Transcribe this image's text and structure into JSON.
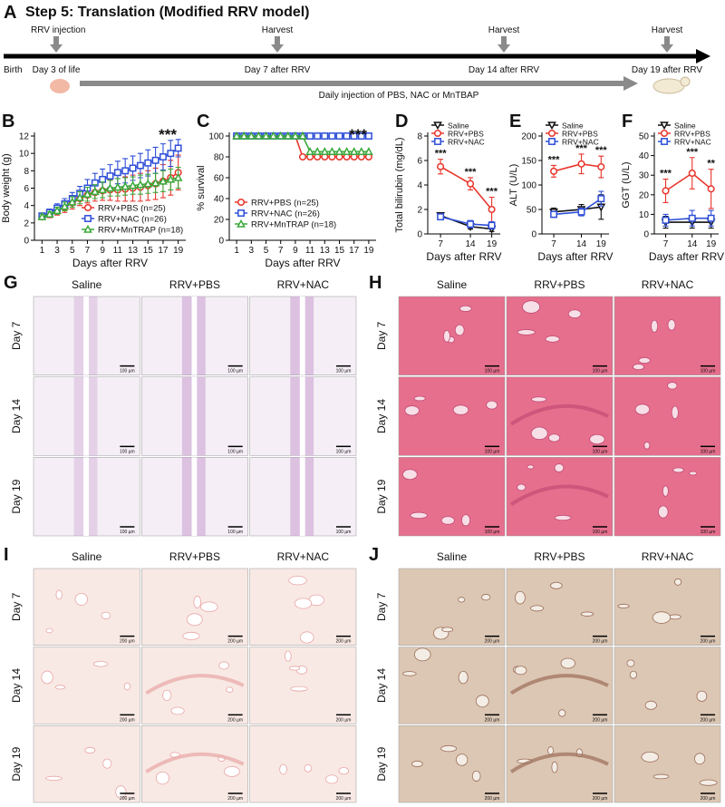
{
  "panel_a": {
    "panel": "A",
    "title": "Step 5: Translation (Modified RRV model)",
    "start": "Birth",
    "events": [
      {
        "top": "RRV injection",
        "bottom": "Day 3 of life"
      },
      {
        "top": "Harvest",
        "bottom": "Day 7 after RRV"
      },
      {
        "top": "Harvest",
        "bottom": "Day 14 after RRV"
      },
      {
        "top": "Harvest",
        "bottom": "Day 19 after RRV"
      }
    ],
    "injection": "Daily injection of PBS, NAC or MnTBAP"
  },
  "chart_data": [
    {
      "type": "line",
      "panel": "B",
      "y_label": "Body weight (g)",
      "x_label": "Days after RRV",
      "x": [
        1,
        2,
        3,
        4,
        5,
        6,
        7,
        8,
        9,
        10,
        11,
        12,
        13,
        14,
        15,
        16,
        17,
        18,
        19
      ],
      "xlim": [
        0,
        20
      ],
      "xticks": [
        1,
        3,
        5,
        7,
        9,
        11,
        13,
        15,
        17,
        19
      ],
      "ylim": [
        0,
        12
      ],
      "yticks": [
        0,
        2,
        4,
        6,
        8,
        10,
        12
      ],
      "legend": "lower right",
      "annotation": "***",
      "series": [
        {
          "name": "RRV+PBS (n=25)",
          "color": "#e8352b",
          "marker": "circle",
          "values": [
            2.7,
            3.0,
            3.4,
            3.8,
            4.3,
            4.8,
            5.2,
            5.5,
            5.7,
            5.8,
            5.8,
            5.9,
            6.0,
            6.1,
            6.3,
            6.5,
            6.8,
            7.2,
            7.8
          ],
          "errors": [
            0.3,
            0.4,
            0.5,
            0.6,
            0.7,
            0.8,
            0.9,
            1.0,
            1.1,
            1.2,
            1.3,
            1.4,
            1.5,
            1.6,
            1.7,
            1.8,
            1.9,
            2.0,
            2.0
          ]
        },
        {
          "name": "RRV+NAC (n=26)",
          "color": "#2f4fd8",
          "marker": "square",
          "values": [
            2.8,
            3.2,
            3.7,
            4.2,
            4.8,
            5.4,
            6.0,
            6.6,
            7.0,
            7.4,
            7.8,
            8.0,
            8.3,
            8.6,
            8.9,
            9.2,
            9.6,
            10.0,
            10.6
          ],
          "errors": [
            0.3,
            0.4,
            0.5,
            0.6,
            0.7,
            0.8,
            1.0,
            1.1,
            1.2,
            1.3,
            1.3,
            1.4,
            1.4,
            1.4,
            1.5,
            1.5,
            1.5,
            1.5,
            1.0
          ]
        },
        {
          "name": "RRV+MnTRAP (n=18)",
          "color": "#3aa83a",
          "marker": "triangle",
          "values": [
            2.7,
            3.0,
            3.4,
            3.9,
            4.4,
            4.9,
            5.3,
            5.6,
            5.8,
            6.0,
            6.1,
            6.2,
            6.3,
            6.4,
            6.5,
            6.6,
            6.8,
            7.0,
            7.2
          ],
          "errors": [
            0.3,
            0.3,
            0.4,
            0.5,
            0.6,
            0.7,
            0.8,
            0.8,
            0.9,
            0.9,
            1.0,
            1.0,
            1.0,
            1.1,
            1.1,
            1.1,
            1.2,
            1.2,
            1.2
          ]
        }
      ]
    },
    {
      "type": "line",
      "panel": "C",
      "y_label": "% survival",
      "x_label": "Days after RRV",
      "x": [
        1,
        2,
        3,
        4,
        5,
        6,
        7,
        8,
        9,
        10,
        11,
        12,
        13,
        14,
        15,
        16,
        17,
        18,
        19
      ],
      "xlim": [
        0,
        20
      ],
      "xticks": [
        1,
        3,
        5,
        7,
        9,
        11,
        13,
        15,
        17,
        19
      ],
      "ylim": [
        0,
        100
      ],
      "yticks": [
        0,
        20,
        40,
        60,
        80,
        100
      ],
      "legend": "lower left",
      "annotation": "***",
      "series": [
        {
          "name": "RRV+PBS (n=25)",
          "color": "#e8352b",
          "marker": "circle",
          "values": [
            100,
            100,
            100,
            100,
            100,
            100,
            100,
            100,
            100,
            80,
            80,
            80,
            80,
            80,
            80,
            80,
            80,
            80,
            80
          ]
        },
        {
          "name": "RRV+NAC (n=26)",
          "color": "#2f4fd8",
          "marker": "square",
          "values": [
            100,
            100,
            100,
            100,
            100,
            100,
            100,
            100,
            100,
            100,
            100,
            100,
            100,
            100,
            100,
            100,
            100,
            100,
            100
          ]
        },
        {
          "name": "RRV+MnTRAP (n=18)",
          "color": "#3aa83a",
          "marker": "triangle",
          "values": [
            100,
            100,
            100,
            100,
            100,
            100,
            100,
            100,
            100,
            100,
            85,
            85,
            85,
            85,
            85,
            85,
            85,
            85,
            85
          ]
        }
      ]
    },
    {
      "type": "line",
      "panel": "D",
      "y_label": "Total bilirubin (mg/dL)",
      "x_label": "Days after RRV",
      "x": [
        7,
        14,
        19
      ],
      "xlim": [
        4,
        21
      ],
      "xticks": [
        7,
        14,
        19
      ],
      "ylim": [
        0,
        8
      ],
      "yticks": [
        0,
        2,
        4,
        6,
        8
      ],
      "legend": "upper left",
      "annotations": [
        "***",
        "***",
        "***"
      ],
      "series": [
        {
          "name": "Saline",
          "color": "#111111",
          "marker": "triangle-down",
          "values": [
            1.5,
            0.6,
            0.4
          ],
          "errors": [
            0.2,
            0.2,
            0.2
          ]
        },
        {
          "name": "RRV+PBS",
          "color": "#e8352b",
          "marker": "circle",
          "values": [
            5.5,
            4.1,
            2.0
          ],
          "errors": [
            0.6,
            0.5,
            1.0
          ]
        },
        {
          "name": "RRV+NAC",
          "color": "#2f4fd8",
          "marker": "square",
          "values": [
            1.4,
            0.8,
            0.7
          ],
          "errors": [
            0.2,
            0.3,
            0.3
          ]
        }
      ]
    },
    {
      "type": "line",
      "panel": "E",
      "y_label": "ALT (U/L)",
      "x_label": "Days after RRV",
      "x": [
        7,
        14,
        19
      ],
      "xlim": [
        4,
        21
      ],
      "xticks": [
        7,
        14,
        19
      ],
      "ylim": [
        0,
        200
      ],
      "yticks": [
        0,
        50,
        100,
        150,
        200
      ],
      "legend": "upper left",
      "annotations": [
        "***",
        "***",
        "***"
      ],
      "series": [
        {
          "name": "Saline",
          "color": "#111111",
          "marker": "triangle-down",
          "values": [
            45,
            50,
            55
          ],
          "errors": [
            8,
            10,
            25
          ]
        },
        {
          "name": "RRV+PBS",
          "color": "#e8352b",
          "marker": "circle",
          "values": [
            128,
            143,
            137
          ],
          "errors": [
            12,
            20,
            22
          ]
        },
        {
          "name": "RRV+NAC",
          "color": "#2f4fd8",
          "marker": "square",
          "values": [
            40,
            45,
            72
          ],
          "errors": [
            6,
            8,
            15
          ]
        }
      ]
    },
    {
      "type": "line",
      "panel": "F",
      "y_label": "GGT (U/L)",
      "x_label": "Days after RRV",
      "x": [
        7,
        14,
        19
      ],
      "xlim": [
        4,
        21
      ],
      "xticks": [
        7,
        14,
        19
      ],
      "ylim": [
        0,
        50
      ],
      "yticks": [
        0,
        10,
        20,
        30,
        40,
        50
      ],
      "legend": "upper left",
      "annotations": [
        "***",
        "***",
        "**"
      ],
      "series": [
        {
          "name": "Saline",
          "color": "#111111",
          "marker": "triangle-down",
          "values": [
            6,
            6,
            6
          ],
          "errors": [
            3,
            3,
            3
          ]
        },
        {
          "name": "RRV+PBS",
          "color": "#e8352b",
          "marker": "circle",
          "values": [
            22,
            31,
            23
          ],
          "errors": [
            6,
            8,
            10
          ]
        },
        {
          "name": "RRV+NAC",
          "color": "#2f4fd8",
          "marker": "square",
          "values": [
            7,
            8,
            8
          ],
          "errors": [
            3,
            4,
            4
          ]
        }
      ]
    }
  ],
  "histology": [
    {
      "panel": "G",
      "columns": [
        "Saline",
        "RRV+PBS",
        "RRV+NAC"
      ],
      "rows": [
        "Day 7",
        "Day 14",
        "Day 19"
      ],
      "scale": "100 µm"
    },
    {
      "panel": "H",
      "columns": [
        "Saline",
        "RRV+PBS",
        "RRV+NAC"
      ],
      "rows": [
        "Day 7",
        "Day 14",
        "Day 19"
      ],
      "scale": "100 µm"
    },
    {
      "panel": "I",
      "columns": [
        "Saline",
        "RRV+PBS",
        "RRV+NAC"
      ],
      "rows": [
        "Day 7",
        "Day 14",
        "Day 19"
      ],
      "scale": "200 µm"
    },
    {
      "panel": "J",
      "columns": [
        "Saline",
        "RRV+PBS",
        "RRV+NAC"
      ],
      "rows": [
        "Day 7",
        "Day 14",
        "Day 19"
      ],
      "scale": "200 µm"
    }
  ]
}
